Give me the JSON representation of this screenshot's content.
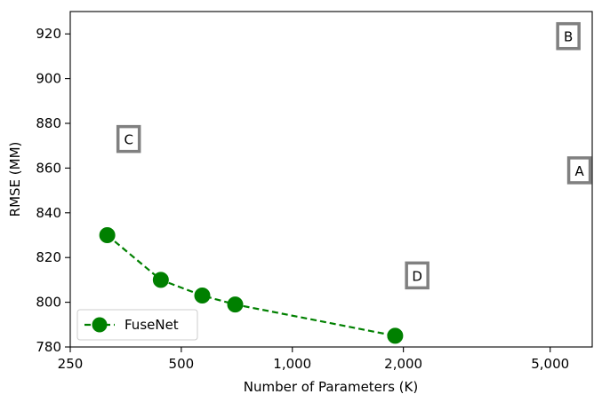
{
  "chart_data": {
    "type": "line",
    "x_scale": "log",
    "xlabel": "Number of Parameters (K)",
    "ylabel": "RMSE (MM)",
    "xlim": [
      250,
      6500
    ],
    "ylim": [
      780,
      930
    ],
    "xticks": [
      250,
      500,
      1000,
      2000,
      5000
    ],
    "xtick_labels": [
      "250",
      "500",
      "1,000",
      "2,000",
      "5,000"
    ],
    "yticks": [
      780,
      800,
      820,
      840,
      860,
      880,
      900,
      920
    ],
    "ytick_labels": [
      "780",
      "800",
      "820",
      "840",
      "860",
      "880",
      "900",
      "920"
    ],
    "grid": false,
    "legend_position": "lower-left",
    "series": [
      {
        "name": "FuseNet",
        "color": "#008000",
        "line_style": "dashed",
        "marker": "circle",
        "x": [
          315,
          440,
          570,
          700,
          1900
        ],
        "y": [
          830,
          810,
          803,
          799,
          785
        ]
      }
    ],
    "annotations": [
      {
        "label": "A",
        "x": 6000,
        "y": 859
      },
      {
        "label": "B",
        "x": 5600,
        "y": 919
      },
      {
        "label": "C",
        "x": 360,
        "y": 873
      },
      {
        "label": "D",
        "x": 2180,
        "y": 812
      }
    ]
  }
}
